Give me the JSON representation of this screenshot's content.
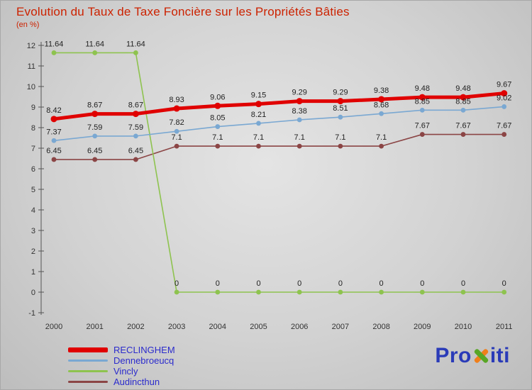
{
  "title": "Evolution du Taux de Taxe Foncière sur les Propriétés Bâties",
  "subtitle": "(en %)",
  "logo": {
    "pro": "Pro",
    "x": "x",
    "iti": "iti"
  },
  "chart_data": {
    "type": "line",
    "x": [
      2000,
      2001,
      2002,
      2003,
      2004,
      2005,
      2006,
      2007,
      2008,
      2009,
      2010,
      2011
    ],
    "series": [
      {
        "name": "RECLINGHEM",
        "color": "#e00000",
        "line_width": 5,
        "point_radius": 4.5,
        "values": [
          8.42,
          8.67,
          8.67,
          8.93,
          9.06,
          9.15,
          9.29,
          9.29,
          9.38,
          9.48,
          9.48,
          9.67
        ]
      },
      {
        "name": "Dennebroeucq",
        "color": "#7aa8d2",
        "line_width": 1.6,
        "point_radius": 3.4,
        "values": [
          7.37,
          7.59,
          7.59,
          7.82,
          8.05,
          8.21,
          8.38,
          8.51,
          8.68,
          8.85,
          8.85,
          9.02
        ]
      },
      {
        "name": "Vincly",
        "color": "#8ec34f",
        "line_width": 1.6,
        "point_radius": 3.4,
        "values": [
          11.64,
          11.64,
          11.64,
          0,
          0,
          0,
          0,
          0,
          0,
          0,
          0,
          0
        ]
      },
      {
        "name": "Audincthun",
        "color": "#8b4545",
        "line_width": 1.6,
        "point_radius": 3.4,
        "values": [
          6.45,
          6.45,
          6.45,
          7.1,
          7.1,
          7.1,
          7.1,
          7.1,
          7.1,
          7.67,
          7.67,
          7.67
        ]
      }
    ],
    "ylim": [
      -1,
      12
    ],
    "yticks": [
      12,
      11,
      10,
      9,
      8,
      7,
      6,
      5,
      4,
      3,
      2,
      1,
      0,
      -1
    ],
    "grid": false,
    "value_labels": true,
    "legend_position": "bottom-left",
    "title_color": "#cc2200",
    "legend_text_color": "#2b2bcc"
  }
}
